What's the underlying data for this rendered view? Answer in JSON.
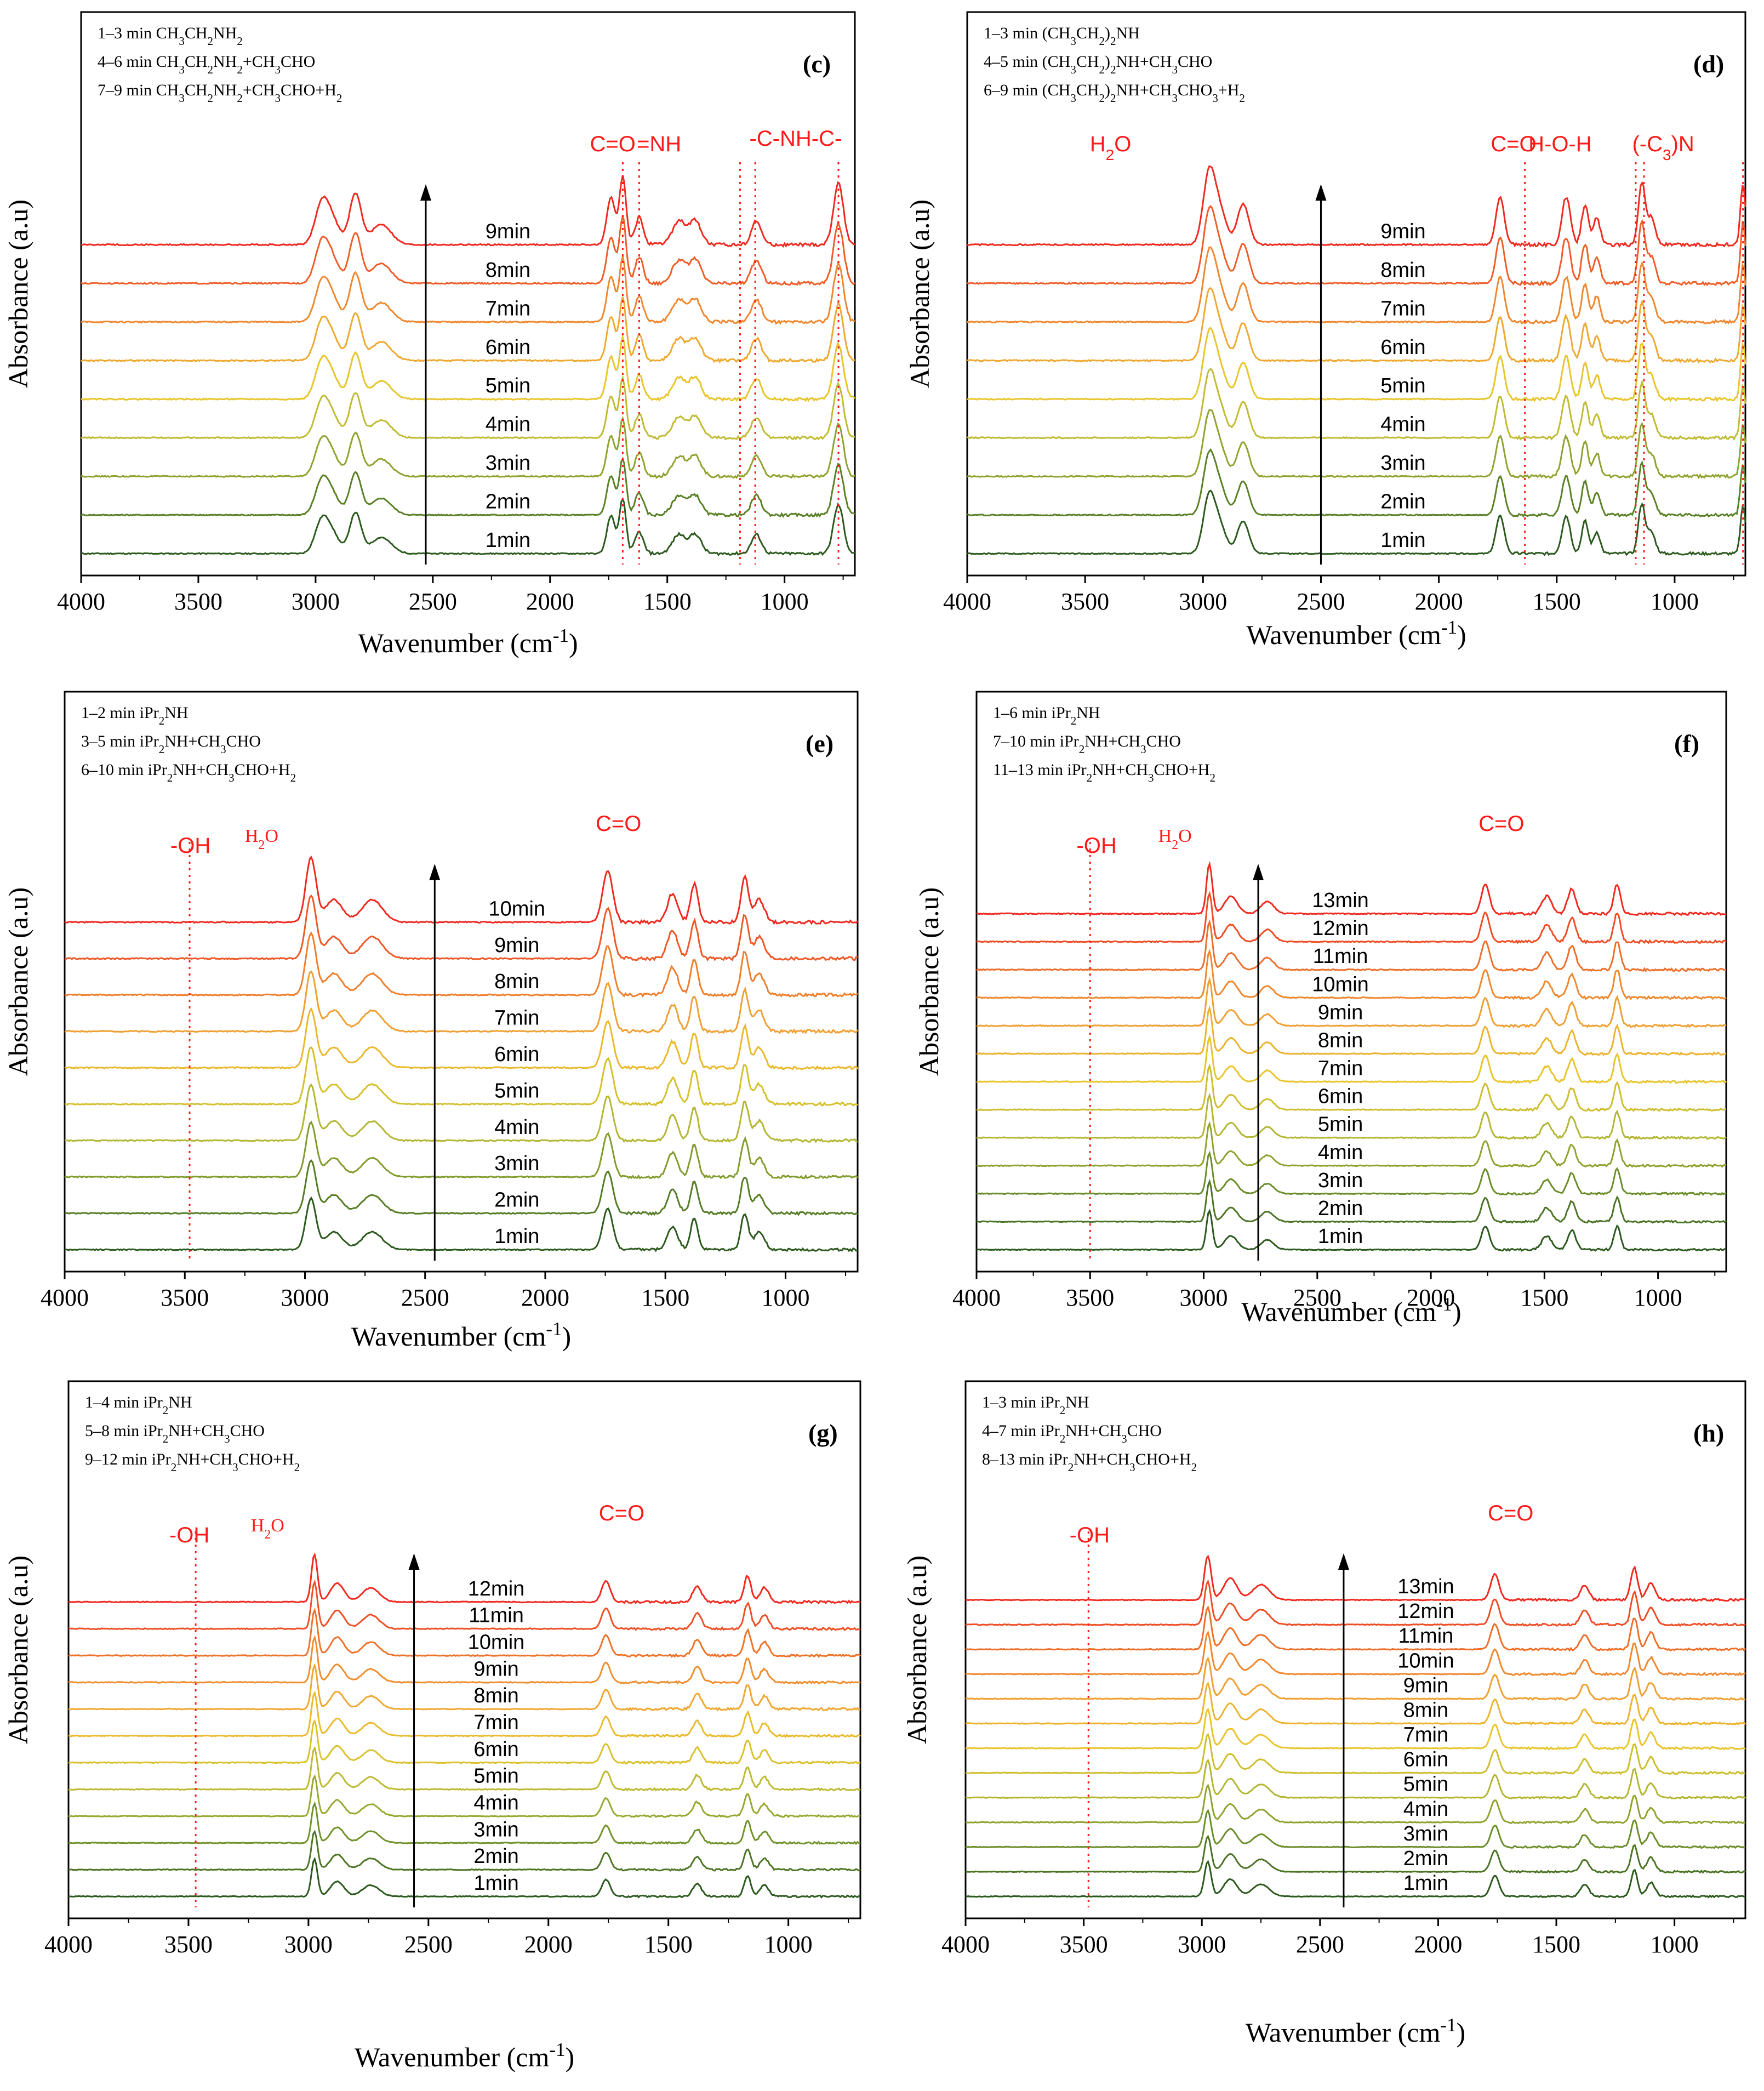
{
  "figure": {
    "axis_title_x": "Wavenumber (cm",
    "axis_title_x_sup": "-1",
    "axis_title_x_close": ")",
    "axis_title_y": "Absorbance (a.u)"
  },
  "chart_data": [
    {
      "type": "line",
      "panel": "(c)",
      "xlabel": "Wavenumber (cm-1)",
      "ylabel": "Absorbance (a.u)",
      "xlim": [
        4000,
        700
      ],
      "xticks": [
        4000,
        3500,
        3000,
        2500,
        2000,
        1500,
        1000
      ],
      "legend": [
        "1–3 min CH3CH2NH2",
        "4–6 min CH3CH2NH2+CH3CHO",
        "7–9 min CH3CH2NH2+CH3CHO+H2"
      ],
      "series": [
        "1min",
        "2min",
        "3min",
        "4min",
        "5min",
        "6min",
        "7min",
        "8min",
        "9min"
      ],
      "annotations": [
        "C=O",
        "=NH",
        "-C-NH-C-"
      ],
      "dotted_lines_cm": [
        1690,
        1620,
        1190,
        1125,
        770
      ],
      "arrow_at_cm": 2530
    },
    {
      "type": "line",
      "panel": "(d)",
      "xlabel": "Wavenumber (cm-1)",
      "ylabel": "Absorbance (a.u)",
      "xlim": [
        4000,
        700
      ],
      "xticks": [
        4000,
        3500,
        3000,
        2500,
        2000,
        1500,
        1000
      ],
      "legend": [
        "1–3 min (CH3CH2)2NH",
        "4–5 min (CH3CH2)2NH+CH3CHO",
        "6–9 min (CH3CH2)2NH+CH3CHO3+H2"
      ],
      "series": [
        "1min",
        "2min",
        "3min",
        "4min",
        "5min",
        "6min",
        "7min",
        "8min",
        "9min"
      ],
      "annotations": [
        "H2O",
        "C=O",
        "H-O-H",
        "(-C3)N"
      ],
      "dotted_lines_cm": [
        1635,
        1165,
        1130,
        710
      ],
      "arrow_at_cm": 2500
    },
    {
      "type": "line",
      "panel": "(e)",
      "xlabel": "Wavenumber (cm-1)",
      "ylabel": "Absorbance (a.u)",
      "xlim": [
        4000,
        700
      ],
      "xticks": [
        4000,
        3500,
        3000,
        2500,
        2000,
        1500,
        1000
      ],
      "legend": [
        "1–2 min iPr2NH",
        "3–5 min iPr2NH+CH3CHO",
        "6–10 min iPr2NH+CH3CHO+H2"
      ],
      "series": [
        "1min",
        "2min",
        "3min",
        "4min",
        "5min",
        "6min",
        "7min",
        "8min",
        "9min",
        "10min"
      ],
      "annotations": [
        "-OH",
        "H2O",
        "C=O"
      ],
      "dotted_lines_cm": [
        3480
      ],
      "arrow_at_cm": 2460
    },
    {
      "type": "line",
      "panel": "(f)",
      "xlabel": "Wavenumber (cm-1)",
      "ylabel": "Absorbance (a.u)",
      "xlim": [
        4000,
        700
      ],
      "xticks": [
        4000,
        3500,
        3000,
        2500,
        2000,
        1500,
        1000
      ],
      "legend": [
        "1–6 min iPr2NH",
        "7–10 min iPr2NH+CH3CHO",
        "11–13 min iPr2NH+CH3CHO+H2"
      ],
      "series": [
        "1min",
        "2min",
        "3min",
        "4min",
        "5min",
        "6min",
        "7min",
        "8min",
        "9min",
        "10min",
        "11min",
        "12min",
        "13min"
      ],
      "annotations": [
        "-OH",
        "H2O",
        "C=O"
      ],
      "dotted_lines_cm": [
        3500
      ],
      "arrow_at_cm": 2760
    },
    {
      "type": "line",
      "panel": "(g)",
      "xlabel": "Wavenumber (cm-1)",
      "ylabel": "Absorbance (a.u)",
      "xlim": [
        4000,
        700
      ],
      "xticks": [
        4000,
        3500,
        3000,
        2500,
        2000,
        1500,
        1000
      ],
      "legend": [
        "1–4 min iPr2NH",
        "5–8 min iPr2NH+CH3CHO",
        "9–12 min iPr2NH+CH3CHO+H2"
      ],
      "series": [
        "1min",
        "2min",
        "3min",
        "4min",
        "5min",
        "6min",
        "7min",
        "8min",
        "9min",
        "10min",
        "11min",
        "12min"
      ],
      "annotations": [
        "-OH",
        "H2O",
        "C=O"
      ],
      "dotted_lines_cm": [
        3470
      ],
      "arrow_at_cm": 2560
    },
    {
      "type": "line",
      "panel": "(h)",
      "xlabel": "Wavenumber (cm-1)",
      "ylabel": "Absorbance (a.u)",
      "xlim": [
        4000,
        700
      ],
      "xticks": [
        4000,
        3500,
        3000,
        2500,
        2000,
        1500,
        1000
      ],
      "legend": [
        "1–3 min iPr2NH",
        "4–7 min iPr2NH+CH3CHO",
        "8–13 min iPr2NH+CH3CHO+H2"
      ],
      "series": [
        "1min",
        "2min",
        "3min",
        "4min",
        "5min",
        "6min",
        "7min",
        "8min",
        "9min",
        "10min",
        "11min",
        "12min",
        "13min"
      ],
      "annotations": [
        "-OH",
        "C=O"
      ],
      "dotted_lines_cm": [
        3480
      ],
      "arrow_at_cm": 2400
    }
  ]
}
